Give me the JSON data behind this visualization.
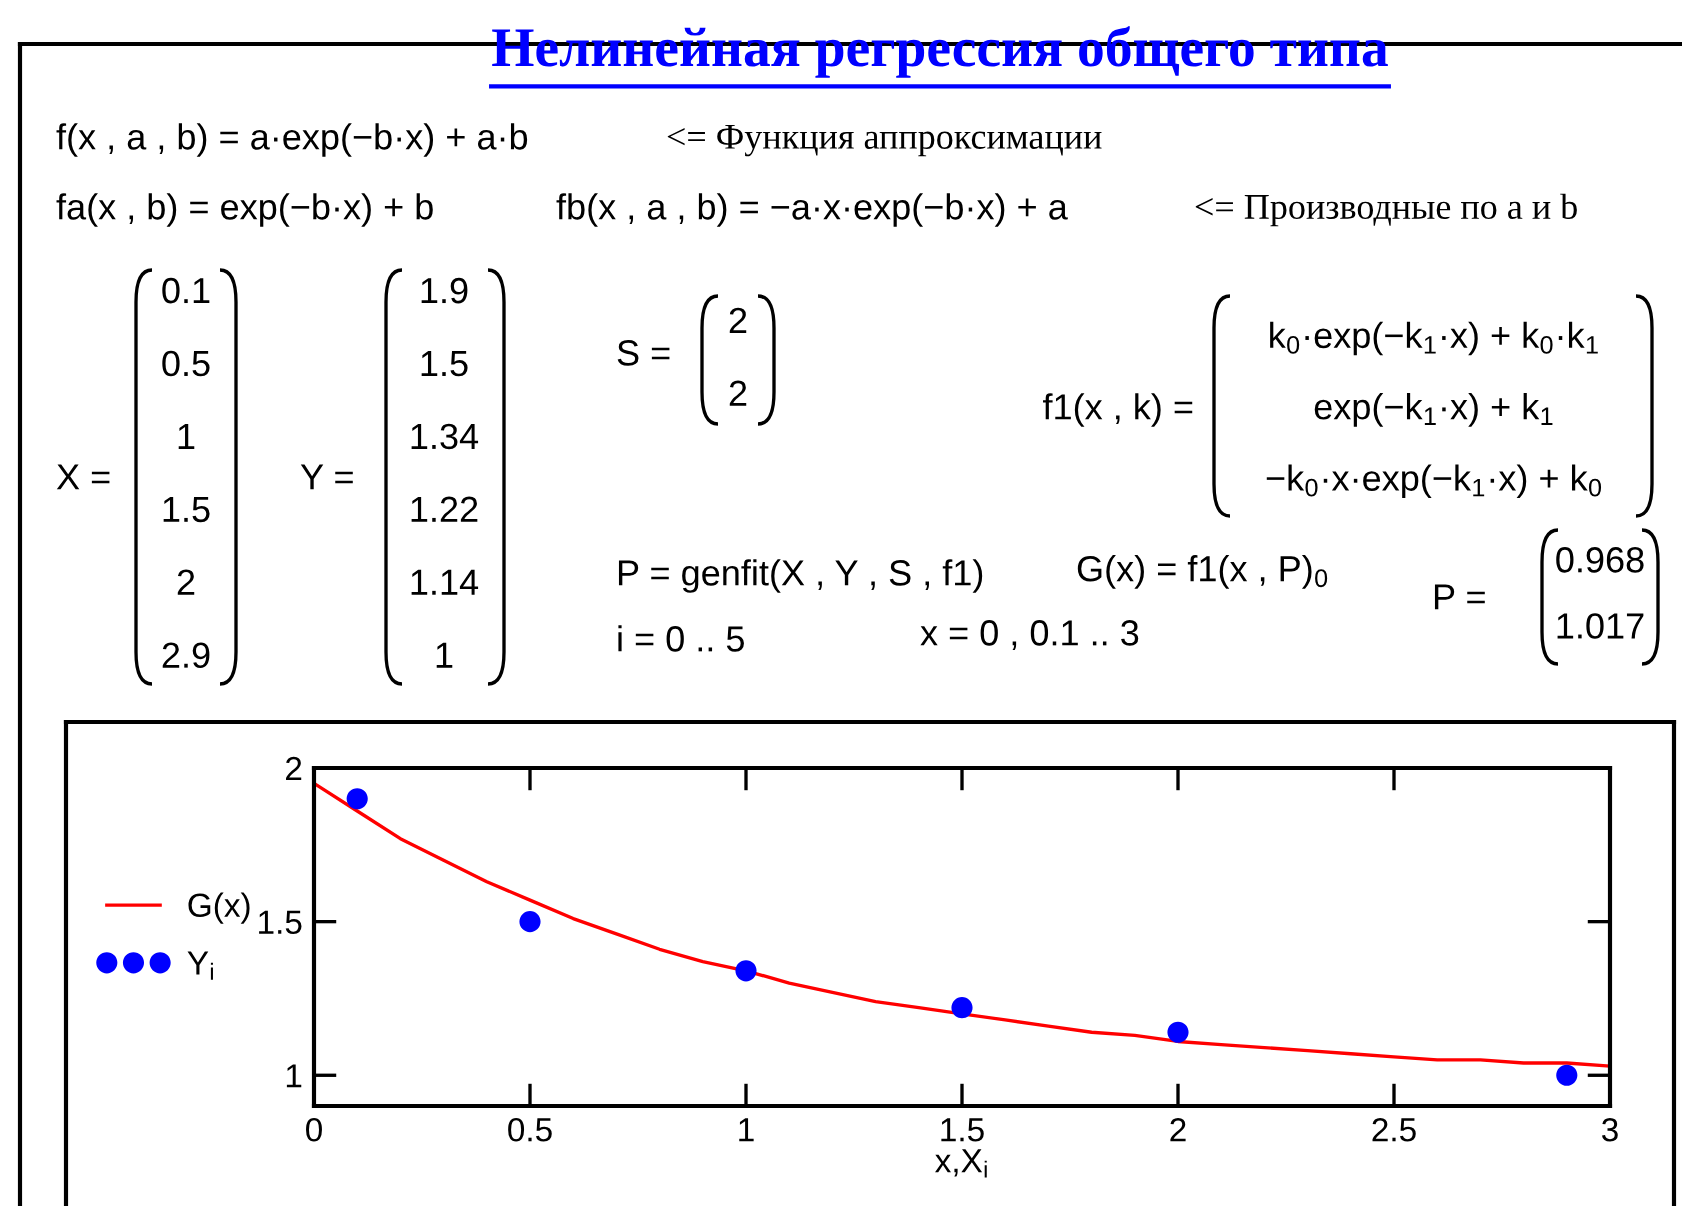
{
  "chart_data": {
    "type": "line",
    "title": "Нелинейная регрессия общего типа",
    "xlabel": "x,X$_{i}$",
    "xlim": [
      0,
      3
    ],
    "xticks": [
      0,
      0.5,
      1,
      1.5,
      2,
      2.5,
      3
    ],
    "ylim": [
      0.9,
      2
    ],
    "yticks": [
      1,
      1.5,
      2
    ],
    "legend": "left",
    "series": [
      {
        "name": "G(x)",
        "color": "#ff0000",
        "marker": "none",
        "line_style": "solid",
        "x": [
          0,
          0.1,
          0.2,
          0.3,
          0.4,
          0.5,
          0.6,
          0.7,
          0.8,
          0.9,
          1,
          1.1,
          1.2,
          1.3,
          1.4,
          1.5,
          1.6,
          1.7,
          1.8,
          1.9,
          2,
          2.1,
          2.2,
          2.3,
          2.4,
          2.5,
          2.6,
          2.7,
          2.8,
          2.9,
          3
        ],
        "values": [
          1.95,
          1.86,
          1.77,
          1.7,
          1.63,
          1.57,
          1.51,
          1.46,
          1.41,
          1.37,
          1.34,
          1.3,
          1.27,
          1.24,
          1.22,
          1.2,
          1.18,
          1.16,
          1.14,
          1.13,
          1.11,
          1.1,
          1.09,
          1.08,
          1.07,
          1.06,
          1.05,
          1.05,
          1.04,
          1.04,
          1.03
        ]
      },
      {
        "name": "Y$_{i}$",
        "type": "scatter",
        "color": "#0000ff",
        "marker": "circle",
        "x": [
          0.1,
          0.5,
          1,
          1.5,
          2,
          2.9
        ],
        "values": [
          1.9,
          1.5,
          1.34,
          1.22,
          1.14,
          1
        ]
      }
    ],
    "annotations": [
      "f(x , a , b) = a·exp(−b·x) + a·b",
      "<= Функция аппроксимации",
      "fa(x , b) = exp(−b·x) + b",
      "fb(x , a , b) = −a·x·exp(−b·x) + a",
      "<= Производные по a и b",
      "X =",
      "0.1\n0.5\n1\n1.5\n2\n2.9",
      "Y =",
      "1.9\n1.5\n1.34\n1.22\n1.14\n1",
      "S =",
      "2\n2",
      "f1(x , k) =",
      "k$_{0}$·exp(−k$_{1}$·x) + k$_{0}$·k$_{1}$\nexp(−k$_{1}$·x) + k$_{1}$\n−k$_{0}$·x·exp(−k$_{1}$·x) + k$_{0}$",
      "P = genfit(X , Y , S , f1)",
      "G(x) = f1(x , P)$_{0}$",
      "P =",
      "0.968\n1.017",
      "i = 0 .. 5",
      "x = 0 , 0.1 .. 3"
    ]
  }
}
